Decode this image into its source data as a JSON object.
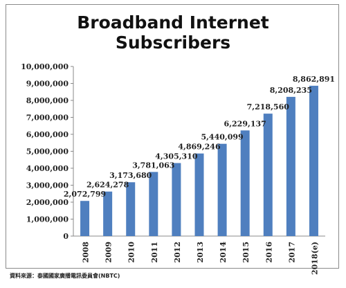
{
  "chart_data": {
    "type": "bar",
    "title_line1": "Broadband Internet",
    "title_line2": "Subscribers",
    "categories": [
      "2008",
      "2009",
      "2010",
      "2011",
      "2012",
      "2013",
      "2014",
      "2015",
      "2016",
      "2017",
      "2018(e)"
    ],
    "values": [
      2072799,
      2624278,
      3173680,
      3781063,
      4305310,
      4869246,
      5440099,
      6229137,
      7218560,
      8208235,
      8862891
    ],
    "data_labels": [
      "2,072,799",
      "2,624,278",
      "3,173,680",
      "3,781,063",
      "4,305,310",
      "4,869,246",
      "5,440,099",
      "6,229,137",
      "7,218,560",
      "8,208,235",
      "8,862,891"
    ],
    "y_ticks": [
      "0",
      "1,000,000",
      "2,000,000",
      "3,000,000",
      "4,000,000",
      "5,000,000",
      "6,000,000",
      "7,000,000",
      "8,000,000",
      "9,000,000",
      "10,000,000"
    ],
    "ylim": [
      0,
      10000000
    ],
    "grid": false,
    "legend": "none",
    "bar_color": "#4f7fbf"
  },
  "source_note": "資料來源：泰國國家廣播電訊委員會(NBTC)"
}
